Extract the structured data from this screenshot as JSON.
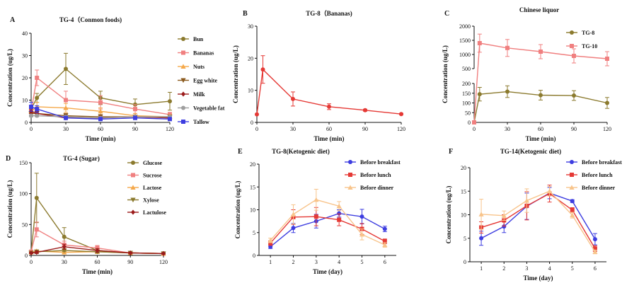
{
  "colors": {
    "olive": "#8B7A2E",
    "pink": "#F08080",
    "orange": "#F5A94B",
    "brown": "#8B5A1E",
    "darkred": "#9B1B1B",
    "gray": "#9E9E9E",
    "blue": "#3D3DE0",
    "red": "#E53935",
    "peach": "#F8C48B",
    "salmon": "#F07F7F"
  },
  "chart_data": [
    {
      "id": "A",
      "label": "A",
      "type": "line",
      "title": "TG-4（Conmon foods)",
      "xlabel": "Time  (min)",
      "ylabel": "Concentration  (ug/L)",
      "xlim": [
        0,
        120
      ],
      "ylim": [
        0,
        40
      ],
      "xticks": [
        0,
        30,
        60,
        90,
        120
      ],
      "yticks": [
        0,
        10,
        20,
        30,
        40
      ],
      "legend": "right",
      "series": [
        {
          "name": "Bun",
          "color": "olive",
          "marker": "circle",
          "x": [
            0,
            5,
            30,
            60,
            90,
            120
          ],
          "y": [
            6,
            11,
            24,
            11,
            8,
            9.5
          ],
          "err": [
            1,
            2,
            7,
            3,
            2.5,
            4
          ]
        },
        {
          "name": "Bananas",
          "color": "pink",
          "marker": "square",
          "x": [
            0,
            5,
            30,
            60,
            90,
            120
          ],
          "y": [
            5,
            20,
            10,
            9,
            6,
            3.5
          ],
          "err": [
            1,
            3.5,
            4,
            3,
            2,
            1
          ]
        },
        {
          "name": "Nuts",
          "color": "orange",
          "marker": "triangle",
          "x": [
            0,
            5,
            30,
            60,
            90,
            120
          ],
          "y": [
            5,
            7,
            6.5,
            5,
            3,
            2.5
          ],
          "err": [
            1,
            2,
            2,
            1.5,
            1,
            1
          ]
        },
        {
          "name": "Egg white",
          "color": "brown",
          "marker": "triangle-down",
          "x": [
            0,
            5,
            30,
            60,
            90,
            120
          ],
          "y": [
            4,
            4,
            3,
            2.5,
            2.5,
            2.5
          ],
          "err": [
            1,
            1,
            1,
            1,
            0.5,
            0.5
          ]
        },
        {
          "name": "Milk",
          "color": "darkred",
          "marker": "diamond",
          "x": [
            0,
            5,
            30,
            60,
            90,
            120
          ],
          "y": [
            5,
            4,
            2,
            2,
            2.5,
            2
          ],
          "err": [
            1,
            1,
            0.5,
            0.5,
            0.5,
            0.5
          ]
        },
        {
          "name": "Vegetable fat",
          "color": "gray",
          "marker": "circle",
          "x": [
            0,
            5,
            30,
            60,
            90,
            120
          ],
          "y": [
            3,
            3,
            2.5,
            2,
            2.5,
            2.5
          ],
          "err": [
            0.5,
            0.5,
            0.5,
            0.5,
            0.5,
            0.5
          ]
        },
        {
          "name": "Tallow",
          "color": "blue",
          "marker": "square",
          "x": [
            0,
            5,
            30,
            60,
            90,
            120
          ],
          "y": [
            7,
            6,
            2,
            1.5,
            2,
            1.5
          ],
          "err": [
            2,
            1.5,
            0.5,
            0.5,
            0.5,
            0.5
          ]
        }
      ]
    },
    {
      "id": "B",
      "label": "B",
      "type": "line",
      "title": "TG-8（Bananas)",
      "xlabel": "Time  (min)",
      "ylabel": "Concentration  (ug/L)",
      "xlim": [
        0,
        120
      ],
      "ylim": [
        0,
        30
      ],
      "xticks": [
        0,
        30,
        60,
        90,
        120
      ],
      "yticks": [
        0,
        10,
        20,
        30
      ],
      "legend": "none",
      "series": [
        {
          "name": "",
          "color": "red",
          "marker": "circle",
          "x": [
            0,
            5,
            30,
            60,
            90,
            120
          ],
          "y": [
            2.5,
            16.5,
            7.3,
            4.9,
            3.8,
            2.6
          ],
          "err": [
            0,
            4.3,
            2.2,
            0.9,
            0.3,
            0.2
          ]
        }
      ]
    },
    {
      "id": "C",
      "label": "C",
      "type": "line",
      "title": "Chinese liquor",
      "xlabel": "Time  (min)",
      "ylabel": "Concentration  (ug/L)",
      "xlim": [
        0,
        120
      ],
      "axis_break": {
        "lower_ylim": [
          0,
          200
        ],
        "upper_ylim": [
          500,
          2000
        ]
      },
      "xticks": [
        0,
        30,
        60,
        90,
        120
      ],
      "yticks_lower": [
        0,
        50,
        100,
        150,
        200
      ],
      "yticks_upper": [
        500,
        1000,
        1500,
        2000
      ],
      "legend": "top-right",
      "series": [
        {
          "name": "TG-8",
          "color": "olive",
          "marker": "circle",
          "x": [
            0,
            5,
            30,
            60,
            90,
            120
          ],
          "y": [
            0,
            145,
            158,
            140,
            138,
            100
          ],
          "err": [
            0,
            35,
            30,
            25,
            25,
            28
          ]
        },
        {
          "name": "TG-10",
          "color": "salmon",
          "marker": "square",
          "x": [
            0,
            5,
            30,
            60,
            90,
            120
          ],
          "y": [
            0,
            1400,
            1230,
            1100,
            950,
            850
          ],
          "err": [
            0,
            320,
            300,
            250,
            250,
            250
          ]
        }
      ]
    },
    {
      "id": "D",
      "label": "D",
      "type": "line",
      "title": "TG-4  (Sugar)",
      "xlabel": "Time  (min)",
      "ylabel": "Concentration  (ug/L)",
      "xlim": [
        0,
        120
      ],
      "ylim": [
        0,
        150
      ],
      "xticks": [
        0,
        30,
        60,
        90,
        120
      ],
      "yticks": [
        0,
        50,
        100,
        150
      ],
      "legend": "right",
      "series": [
        {
          "name": "Glucose",
          "color": "olive",
          "marker": "circle",
          "x": [
            0,
            5,
            30,
            60,
            90,
            120
          ],
          "y": [
            5,
            93,
            30,
            8,
            4,
            3
          ],
          "err": [
            1,
            40,
            15,
            5,
            1,
            1
          ]
        },
        {
          "name": "Sucrose",
          "color": "pink",
          "marker": "square",
          "x": [
            0,
            5,
            30,
            60,
            90,
            120
          ],
          "y": [
            6,
            42,
            17,
            12,
            4,
            3
          ],
          "err": [
            1,
            12,
            6,
            4,
            1,
            1
          ]
        },
        {
          "name": "Lactose",
          "color": "orange",
          "marker": "triangle",
          "x": [
            0,
            5,
            30,
            60,
            90,
            120
          ],
          "y": [
            5,
            7,
            5,
            6,
            4,
            3
          ],
          "err": [
            1,
            2,
            2,
            2,
            1,
            1
          ]
        },
        {
          "name": "Xylose",
          "color": "olive",
          "marker": "triangle-down",
          "x": [
            0,
            5,
            30,
            60,
            90,
            120
          ],
          "y": [
            4,
            6,
            8,
            6,
            4,
            3
          ],
          "err": [
            1,
            2,
            2,
            2,
            1,
            1
          ]
        },
        {
          "name": "Lactulose",
          "color": "darkred",
          "marker": "diamond",
          "x": [
            0,
            5,
            30,
            60,
            90,
            120
          ],
          "y": [
            4,
            5,
            14,
            8,
            4,
            3
          ],
          "err": [
            1,
            2,
            4,
            3,
            1,
            1
          ]
        }
      ]
    },
    {
      "id": "E",
      "label": "E",
      "type": "line",
      "title": "TG-8(Ketogenic diet)",
      "xlabel": "Time  (day)",
      "ylabel": "Concentration  (ug/L)",
      "xlim": [
        0.5,
        6.5
      ],
      "ylim": [
        0,
        20
      ],
      "xticks": [
        1,
        2,
        3,
        4,
        5,
        6
      ],
      "yticks": [
        0,
        5,
        10,
        15,
        20
      ],
      "legend": "top-right",
      "series": [
        {
          "name": "Before breakfast",
          "color": "blue",
          "marker": "circle",
          "x": [
            1,
            2,
            3,
            4,
            5,
            6
          ],
          "y": [
            1.9,
            6.0,
            7.5,
            9.2,
            8.5,
            5.8
          ],
          "err": [
            0.4,
            1.0,
            1.5,
            0.8,
            1.6,
            0.6
          ]
        },
        {
          "name": "Before lunch",
          "color": "red",
          "marker": "square",
          "x": [
            1,
            2,
            3,
            4,
            5,
            6
          ],
          "y": [
            2.7,
            8.4,
            8.5,
            7.8,
            5.8,
            3.1
          ],
          "err": [
            0.5,
            1.6,
            2.0,
            1.3,
            1.2,
            0.5
          ]
        },
        {
          "name": "Before dinner",
          "color": "peach",
          "marker": "triangle",
          "x": [
            1,
            2,
            3,
            4,
            5,
            6
          ],
          "y": [
            3.3,
            9.0,
            12.2,
            10.8,
            4.6,
            2.3
          ],
          "err": [
            0.5,
            2.1,
            2.3,
            1.0,
            1.2,
            0.5
          ]
        }
      ]
    },
    {
      "id": "F",
      "label": "F",
      "type": "line",
      "title": "TG-14(Ketogenic diet)",
      "xlabel": "Time  (day)",
      "ylabel": "Concentration  (ug/L)",
      "xlim": [
        0.5,
        6.5
      ],
      "ylim": [
        0,
        20
      ],
      "xticks": [
        1,
        2,
        3,
        4,
        5,
        6
      ],
      "yticks": [
        0,
        5,
        10,
        15,
        20
      ],
      "legend": "top-right",
      "series": [
        {
          "name": "Before breakfast",
          "color": "blue",
          "marker": "circle",
          "x": [
            1,
            2,
            3,
            4,
            5,
            6
          ],
          "y": [
            5.0,
            7.5,
            11.8,
            14.6,
            12.9,
            4.8
          ],
          "err": [
            1.5,
            1.3,
            2.8,
            1.2,
            0.3,
            1.2
          ]
        },
        {
          "name": "Before lunch",
          "color": "red",
          "marker": "square",
          "x": [
            1,
            2,
            3,
            4,
            5,
            6
          ],
          "y": [
            7.3,
            8.8,
            11.9,
            14.5,
            11.0,
            2.8
          ],
          "err": [
            1.2,
            1.2,
            3.0,
            1.8,
            0.5,
            0.6
          ]
        },
        {
          "name": "Before dinner",
          "color": "peach",
          "marker": "triangle",
          "x": [
            1,
            2,
            3,
            4,
            5,
            6
          ],
          "y": [
            10.1,
            9.8,
            13.0,
            15.0,
            9.9,
            2.1
          ],
          "err": [
            3.2,
            1.0,
            2.5,
            1.0,
            0.6,
            0.4
          ]
        }
      ]
    }
  ]
}
